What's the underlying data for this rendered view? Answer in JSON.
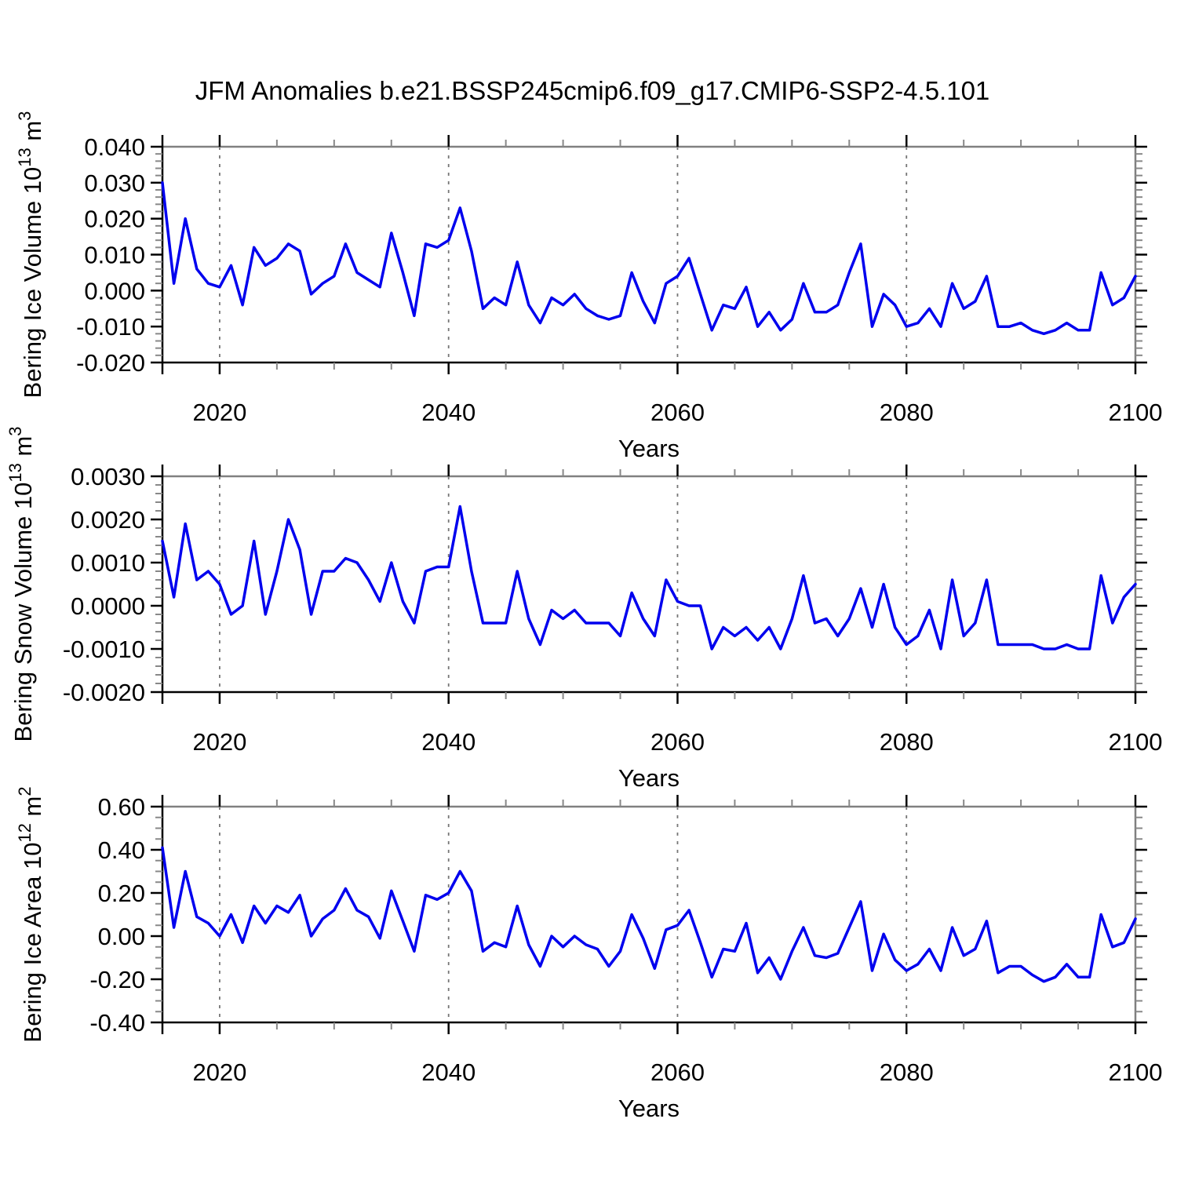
{
  "title": "JFM Anomalies b.e21.BSSP245cmip6.f09_g17.CMIP6-SSP2-4.5.101",
  "colors": {
    "line": "#0000ee",
    "axis_primary": "#000000",
    "axis_secondary": "#808080",
    "grid": "#777777",
    "minor_tick": "#888888"
  },
  "chart_data": [
    {
      "type": "line",
      "xlabel": "Years",
      "ylabel_parts": [
        {
          "text": "Bering Ice Volume 10"
        },
        {
          "text": "13",
          "sup": true
        },
        {
          "text": " m"
        },
        {
          "text": "3",
          "sup": true
        }
      ],
      "xlim": [
        2015,
        2100
      ],
      "ylim": [
        -0.02,
        0.04
      ],
      "xticks_labeled": [
        2020,
        2040,
        2060,
        2080,
        2100
      ],
      "xtick_labels": [
        "2020",
        "2040",
        "2060",
        "2080",
        "2100"
      ],
      "xtick_minor_step": 5,
      "grid_x": [
        2020,
        2040,
        2060,
        2080
      ],
      "yticks_major": [
        0.04,
        0.03,
        0.02,
        0.01,
        0.0,
        -0.01,
        -0.02
      ],
      "ytick_labels": [
        "0.040",
        "0.030",
        "0.020",
        "0.010",
        "0.000",
        "-0.010",
        "-0.020"
      ],
      "ytick_minor_step": 0.002,
      "legend": "none",
      "grid_style": "dashed-vertical",
      "x": [
        2015,
        2016,
        2017,
        2018,
        2019,
        2020,
        2021,
        2022,
        2023,
        2024,
        2025,
        2026,
        2027,
        2028,
        2029,
        2030,
        2031,
        2032,
        2033,
        2034,
        2035,
        2036,
        2037,
        2038,
        2039,
        2040,
        2041,
        2042,
        2043,
        2044,
        2045,
        2046,
        2047,
        2048,
        2049,
        2050,
        2051,
        2052,
        2053,
        2054,
        2055,
        2056,
        2057,
        2058,
        2059,
        2060,
        2061,
        2062,
        2063,
        2064,
        2065,
        2066,
        2067,
        2068,
        2069,
        2070,
        2071,
        2072,
        2073,
        2074,
        2075,
        2076,
        2077,
        2078,
        2079,
        2080,
        2081,
        2082,
        2083,
        2084,
        2085,
        2086,
        2087,
        2088,
        2089,
        2090,
        2091,
        2092,
        2093,
        2094,
        2095,
        2096,
        2097,
        2098,
        2099,
        2100
      ],
      "values": [
        0.03,
        0.002,
        0.02,
        0.006,
        0.002,
        0.001,
        0.007,
        -0.004,
        0.012,
        0.007,
        0.009,
        0.013,
        0.011,
        -0.001,
        0.002,
        0.004,
        0.013,
        0.005,
        0.003,
        0.001,
        0.016,
        0.005,
        -0.007,
        0.013,
        0.012,
        0.014,
        0.023,
        0.011,
        -0.005,
        -0.002,
        -0.004,
        0.008,
        -0.004,
        -0.009,
        -0.002,
        -0.004,
        -0.001,
        -0.005,
        -0.007,
        -0.008,
        -0.007,
        0.005,
        -0.003,
        -0.009,
        0.002,
        0.004,
        0.009,
        -0.001,
        -0.011,
        -0.004,
        -0.005,
        0.001,
        -0.01,
        -0.006,
        -0.011,
        -0.008,
        0.002,
        -0.006,
        -0.006,
        -0.004,
        0.005,
        0.013,
        -0.01,
        -0.001,
        -0.004,
        -0.01,
        -0.009,
        -0.005,
        -0.01,
        0.002,
        -0.005,
        -0.003,
        0.004,
        -0.01,
        -0.01,
        -0.009,
        -0.011,
        -0.012,
        -0.011,
        -0.009,
        -0.011,
        -0.011,
        0.005,
        -0.004,
        -0.002,
        0.004
      ]
    },
    {
      "type": "line",
      "xlabel": "Years",
      "ylabel_parts": [
        {
          "text": "Bering Snow Volume 10"
        },
        {
          "text": "13",
          "sup": true
        },
        {
          "text": " m"
        },
        {
          "text": "3",
          "sup": true
        }
      ],
      "xlim": [
        2015,
        2100
      ],
      "ylim": [
        -0.002,
        0.003
      ],
      "xticks_labeled": [
        2020,
        2040,
        2060,
        2080,
        2100
      ],
      "xtick_labels": [
        "2020",
        "2040",
        "2060",
        "2080",
        "2100"
      ],
      "xtick_minor_step": 5,
      "grid_x": [
        2020,
        2040,
        2060,
        2080
      ],
      "yticks_major": [
        0.003,
        0.002,
        0.001,
        0.0,
        -0.001,
        -0.002
      ],
      "ytick_labels": [
        "0.0030",
        "0.0020",
        "0.0010",
        "0.0000",
        "-0.0010",
        "-0.0020"
      ],
      "ytick_minor_step": 0.0002,
      "legend": "none",
      "grid_style": "dashed-vertical",
      "x": [
        2015,
        2016,
        2017,
        2018,
        2019,
        2020,
        2021,
        2022,
        2023,
        2024,
        2025,
        2026,
        2027,
        2028,
        2029,
        2030,
        2031,
        2032,
        2033,
        2034,
        2035,
        2036,
        2037,
        2038,
        2039,
        2040,
        2041,
        2042,
        2043,
        2044,
        2045,
        2046,
        2047,
        2048,
        2049,
        2050,
        2051,
        2052,
        2053,
        2054,
        2055,
        2056,
        2057,
        2058,
        2059,
        2060,
        2061,
        2062,
        2063,
        2064,
        2065,
        2066,
        2067,
        2068,
        2069,
        2070,
        2071,
        2072,
        2073,
        2074,
        2075,
        2076,
        2077,
        2078,
        2079,
        2080,
        2081,
        2082,
        2083,
        2084,
        2085,
        2086,
        2087,
        2088,
        2089,
        2090,
        2091,
        2092,
        2093,
        2094,
        2095,
        2096,
        2097,
        2098,
        2099,
        2100
      ],
      "values": [
        0.0015,
        0.0002,
        0.0019,
        0.0006,
        0.0008,
        0.0005,
        -0.0002,
        0.0,
        0.0015,
        -0.0002,
        0.0008,
        0.002,
        0.0013,
        -0.0002,
        0.0008,
        0.0008,
        0.0011,
        0.001,
        0.0006,
        0.0001,
        0.001,
        0.0001,
        -0.0004,
        0.0008,
        0.0009,
        0.0009,
        0.0023,
        0.0008,
        -0.0004,
        -0.0004,
        -0.0004,
        0.0008,
        -0.0003,
        -0.0009,
        -0.0001,
        -0.0003,
        -0.0001,
        -0.0004,
        -0.0004,
        -0.0004,
        -0.0007,
        0.0003,
        -0.0003,
        -0.0007,
        0.0006,
        0.0001,
        0.0,
        0.0,
        -0.001,
        -0.0005,
        -0.0007,
        -0.0005,
        -0.0008,
        -0.0005,
        -0.001,
        -0.0003,
        0.0007,
        -0.0004,
        -0.0003,
        -0.0007,
        -0.0003,
        0.0004,
        -0.0005,
        0.0005,
        -0.0005,
        -0.0009,
        -0.0007,
        -0.0001,
        -0.001,
        0.0006,
        -0.0007,
        -0.0004,
        0.0006,
        -0.0009,
        -0.0009,
        -0.0009,
        -0.0009,
        -0.001,
        -0.001,
        -0.0009,
        -0.001,
        -0.001,
        0.0007,
        -0.0004,
        0.0002,
        0.0005
      ]
    },
    {
      "type": "line",
      "xlabel": "Years",
      "ylabel_parts": [
        {
          "text": "Bering Ice Area 10"
        },
        {
          "text": "12",
          "sup": true
        },
        {
          "text": " m"
        },
        {
          "text": "2",
          "sup": true
        }
      ],
      "xlim": [
        2015,
        2100
      ],
      "ylim": [
        -0.4,
        0.6
      ],
      "xticks_labeled": [
        2020,
        2040,
        2060,
        2080,
        2100
      ],
      "xtick_labels": [
        "2020",
        "2040",
        "2060",
        "2080",
        "2100"
      ],
      "xtick_minor_step": 5,
      "grid_x": [
        2020,
        2040,
        2060,
        2080
      ],
      "yticks_major": [
        0.6,
        0.4,
        0.2,
        0.0,
        -0.2,
        -0.4
      ],
      "ytick_labels": [
        "0.60",
        "0.40",
        "0.20",
        "0.00",
        "-0.20",
        "-0.40"
      ],
      "ytick_minor_step": 0.05,
      "legend": "none",
      "grid_style": "dashed-vertical",
      "x": [
        2015,
        2016,
        2017,
        2018,
        2019,
        2020,
        2021,
        2022,
        2023,
        2024,
        2025,
        2026,
        2027,
        2028,
        2029,
        2030,
        2031,
        2032,
        2033,
        2034,
        2035,
        2036,
        2037,
        2038,
        2039,
        2040,
        2041,
        2042,
        2043,
        2044,
        2045,
        2046,
        2047,
        2048,
        2049,
        2050,
        2051,
        2052,
        2053,
        2054,
        2055,
        2056,
        2057,
        2058,
        2059,
        2060,
        2061,
        2062,
        2063,
        2064,
        2065,
        2066,
        2067,
        2068,
        2069,
        2070,
        2071,
        2072,
        2073,
        2074,
        2075,
        2076,
        2077,
        2078,
        2079,
        2080,
        2081,
        2082,
        2083,
        2084,
        2085,
        2086,
        2087,
        2088,
        2089,
        2090,
        2091,
        2092,
        2093,
        2094,
        2095,
        2096,
        2097,
        2098,
        2099,
        2100
      ],
      "values": [
        0.41,
        0.04,
        0.3,
        0.09,
        0.06,
        0.0,
        0.1,
        -0.03,
        0.14,
        0.06,
        0.14,
        0.11,
        0.19,
        0.0,
        0.08,
        0.12,
        0.22,
        0.12,
        0.09,
        -0.01,
        0.21,
        0.07,
        -0.07,
        0.19,
        0.17,
        0.2,
        0.3,
        0.21,
        -0.07,
        -0.03,
        -0.05,
        0.14,
        -0.04,
        -0.14,
        0.0,
        -0.05,
        0.0,
        -0.04,
        -0.06,
        -0.14,
        -0.07,
        0.1,
        -0.01,
        -0.15,
        0.03,
        0.05,
        0.12,
        -0.03,
        -0.19,
        -0.06,
        -0.07,
        0.06,
        -0.17,
        -0.1,
        -0.2,
        -0.07,
        0.04,
        -0.09,
        -0.1,
        -0.08,
        0.04,
        0.16,
        -0.16,
        0.01,
        -0.11,
        -0.16,
        -0.13,
        -0.06,
        -0.16,
        0.04,
        -0.09,
        -0.06,
        0.07,
        -0.17,
        -0.14,
        -0.14,
        -0.18,
        -0.21,
        -0.19,
        -0.13,
        -0.19,
        -0.19,
        0.1,
        -0.05,
        -0.03,
        0.08
      ]
    }
  ]
}
